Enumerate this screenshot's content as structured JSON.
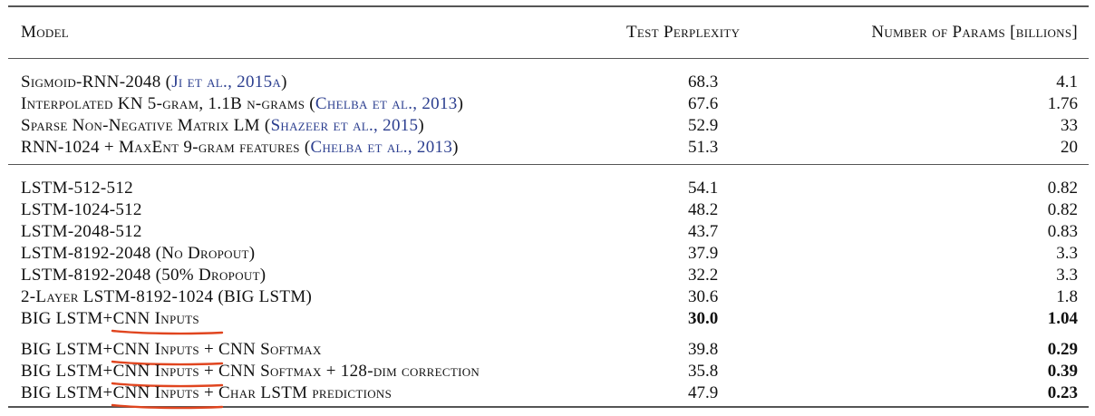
{
  "header": {
    "model": "Model",
    "perplexity": "Test Perplexity",
    "params": "Number of Params [billions]"
  },
  "group1": [
    {
      "name": "Sigmoid-RNN-2048 (",
      "cite": "Ji et al., 2015a",
      "tail": ")",
      "ppl": "68.3",
      "params": "4.1"
    },
    {
      "name": "Interpolated KN 5-gram, 1.1B n-grams (",
      "cite": "Chelba et al., 2013",
      "tail": ")",
      "ppl": "67.6",
      "params": "1.76"
    },
    {
      "name": "Sparse Non-Negative Matrix LM (",
      "cite": "Shazeer et al., 2015",
      "tail": ")",
      "ppl": "52.9",
      "params": "33"
    },
    {
      "name": "RNN-1024 + MaxEnt 9-gram features (",
      "cite": "Chelba et al., 2013",
      "tail": ")",
      "ppl": "51.3",
      "params": "20"
    }
  ],
  "group2": [
    {
      "name": "LSTM-512-512",
      "ppl": "54.1",
      "params": "0.82"
    },
    {
      "name": "LSTM-1024-512",
      "ppl": "48.2",
      "params": "0.82"
    },
    {
      "name": "LSTM-2048-512",
      "ppl": "43.7",
      "params": "0.83"
    },
    {
      "name": "LSTM-8192-2048 (No Dropout)",
      "ppl": "37.9",
      "params": "3.3"
    },
    {
      "name": "LSTM-8192-2048 (50% Dropout)",
      "ppl": "32.2",
      "params": "3.3"
    },
    {
      "name": "2-Layer LSTM-8192-1024 (BIG LSTM)",
      "ppl": "30.6",
      "params": "1.8"
    },
    {
      "prefix": "BIG LSTM+",
      "underlined": "CNN Inputs",
      "suffix": "",
      "ppl": "30.0",
      "params": "1.04"
    }
  ],
  "group3": [
    {
      "prefix": "BIG LSTM+",
      "underlined": "CNN Inputs",
      "suffix": " + CNN Softmax",
      "ppl": "39.8",
      "params": "0.29"
    },
    {
      "prefix": "BIG LSTM+",
      "underlined": "CNN Inputs",
      "suffix": " + CNN Softmax + 128-dim correction",
      "ppl": "35.8",
      "params": "0.39"
    },
    {
      "prefix": "BIG LSTM+",
      "underlined": "CNN Inputs",
      "suffix": " + Char LSTM predictions",
      "ppl": "47.9",
      "params": "0.23"
    }
  ],
  "colors": {
    "citation": "#2b3e8f",
    "annotation": "#e0451f",
    "rule": "#555555"
  }
}
